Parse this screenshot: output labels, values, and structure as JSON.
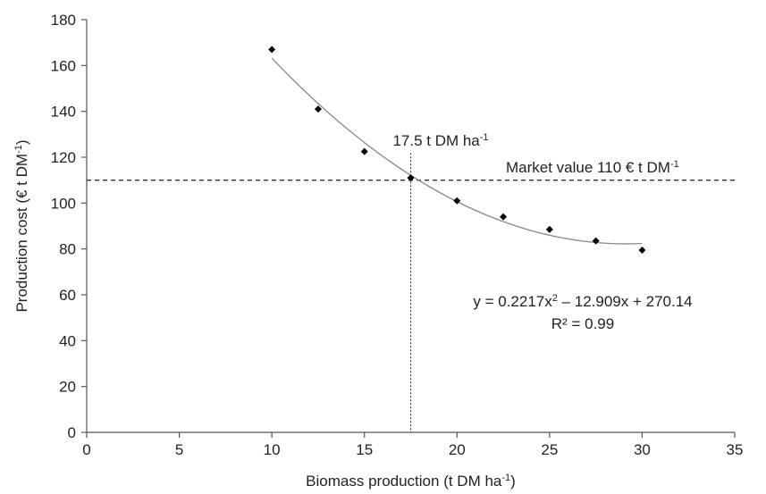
{
  "chart_data": {
    "type": "scatter",
    "xlabel_main": "Biomass production  (t DM ha",
    "xlabel_sup": "-1",
    "xlabel_end": ")",
    "ylabel_main": "Production cost (€ t DM",
    "ylabel_sup": "-1",
    "ylabel_end": ")",
    "xlim": [
      0,
      35
    ],
    "ylim": [
      0,
      180
    ],
    "x_ticks": [
      "0",
      "5",
      "10",
      "15",
      "20",
      "25",
      "30",
      "35"
    ],
    "y_ticks": [
      "0",
      "20",
      "40",
      "60",
      "80",
      "100",
      "120",
      "140",
      "160",
      "180"
    ],
    "grid": false,
    "points": [
      {
        "x": 10,
        "y": 167
      },
      {
        "x": 12.5,
        "y": 141
      },
      {
        "x": 15,
        "y": 122.5
      },
      {
        "x": 17.5,
        "y": 111
      },
      {
        "x": 20,
        "y": 101
      },
      {
        "x": 22.5,
        "y": 94
      },
      {
        "x": 25,
        "y": 88.5
      },
      {
        "x": 27.5,
        "y": 83.5
      },
      {
        "x": 30,
        "y": 79.5
      }
    ],
    "trendline": {
      "type": "polynomial",
      "a": 0.2217,
      "b": -12.909,
      "c": 270.14,
      "x_range": [
        10,
        30
      ]
    },
    "market_value": 110,
    "break_even_x": 17.5,
    "annotations": {
      "market_main": "Market value 110 € t DM",
      "market_sup": "-1",
      "break_even_main": "17.5 t DM ha",
      "break_even_sup": "-1",
      "equation_a": "y = 0.2217x",
      "equation_sup": "2",
      "equation_b": " – 12.909x + 270.14",
      "r_squared": "R² = 0.99"
    },
    "colors": {
      "points": "#000000",
      "trendline": "#888888",
      "reference": "#333333",
      "axis": "#555555"
    }
  }
}
